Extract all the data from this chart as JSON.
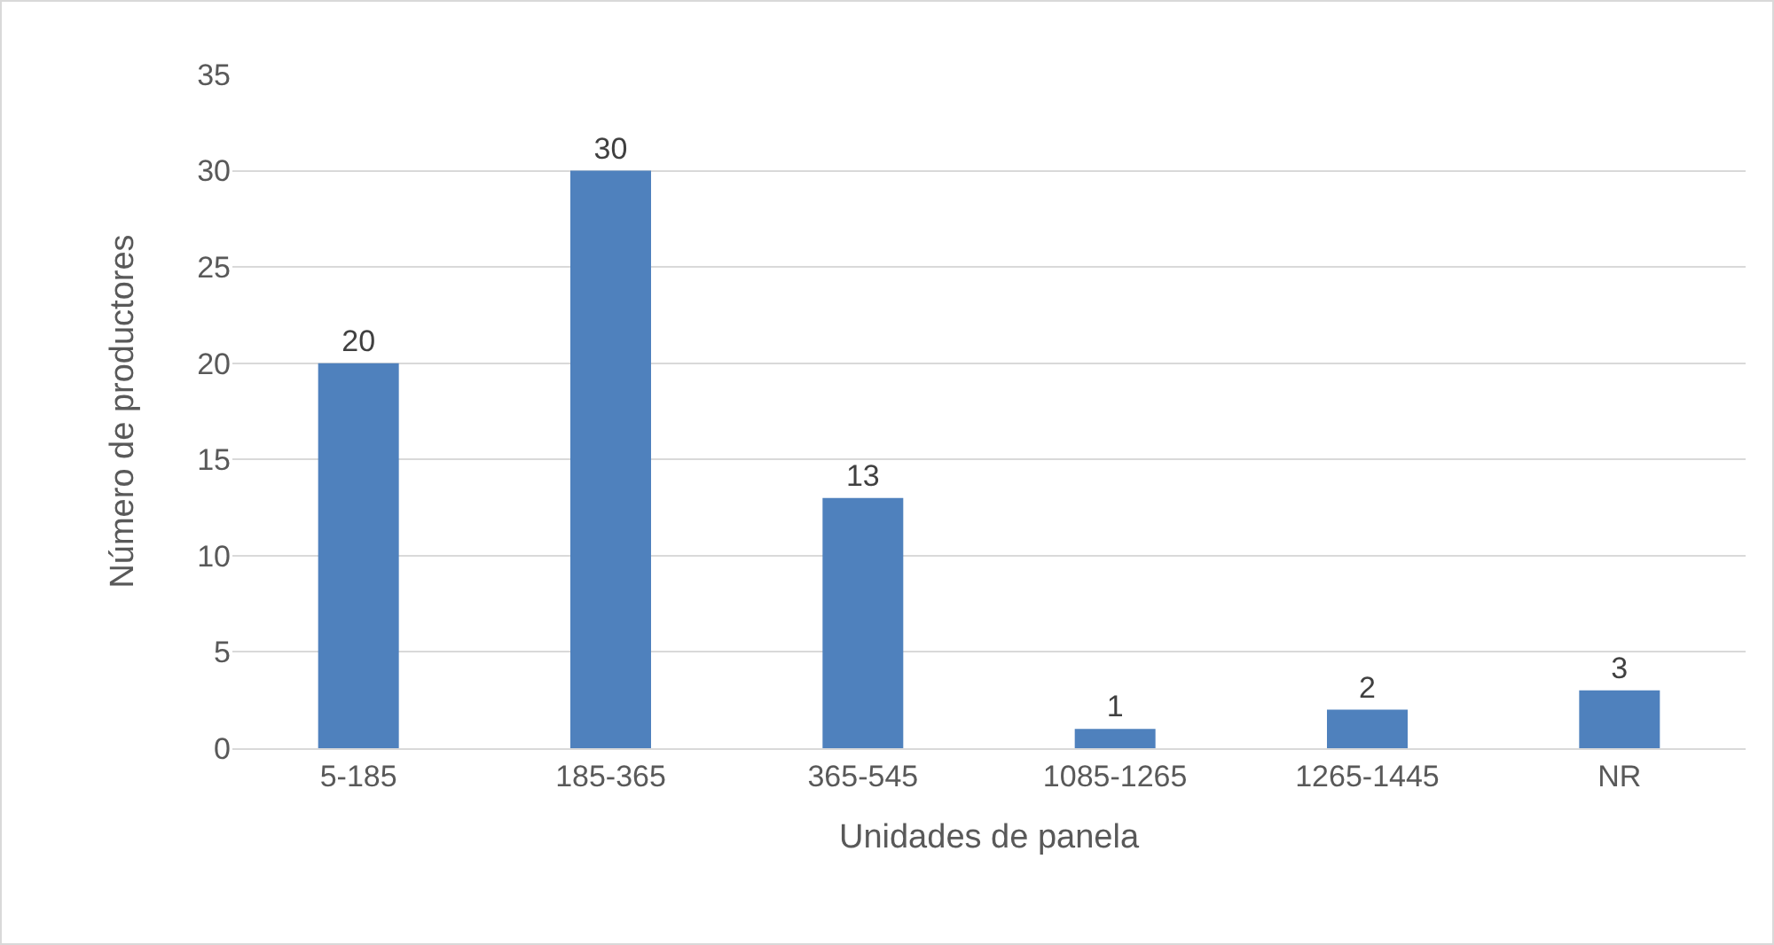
{
  "chart_data": {
    "type": "bar",
    "xlabel": "Unidades de panela",
    "ylabel": "Número de productores",
    "categories": [
      "5-185",
      "185-365",
      "365-545",
      "1085-1265",
      "1265-1445",
      "NR"
    ],
    "values": [
      20,
      30,
      13,
      1,
      2,
      3
    ],
    "color": "#4f81bd",
    "ylim": [
      0,
      35
    ],
    "yticks": [
      0,
      5,
      10,
      15,
      20,
      25,
      30,
      35
    ],
    "grid": "y",
    "data_labels": true
  }
}
